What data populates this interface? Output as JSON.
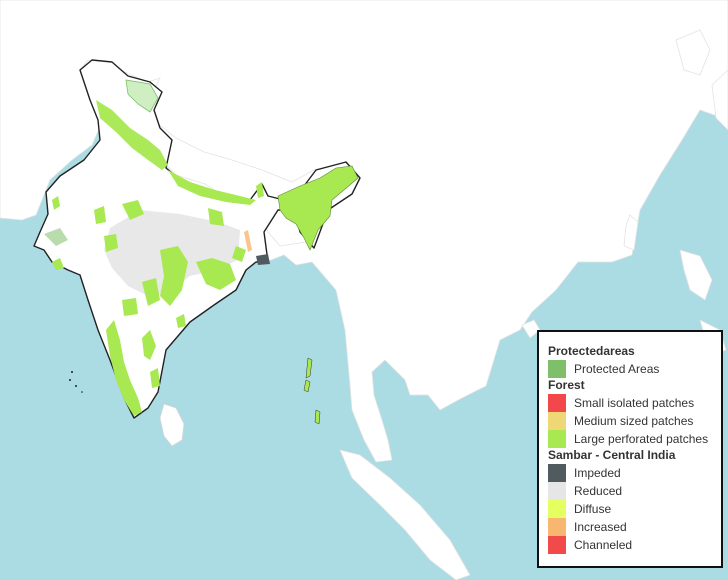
{
  "map": {
    "colors": {
      "sea": "#abdbe3",
      "land": "#ffffff",
      "india_fill": "#ffffff",
      "border": "#222222"
    }
  },
  "legend": {
    "groups": [
      {
        "title": "Protectedareas",
        "items": [
          {
            "label": "Protected Areas",
            "color": "#7fbf6a"
          }
        ]
      },
      {
        "title": "Forest",
        "items": [
          {
            "label": "Small isolated patches",
            "color": "#f2484b"
          },
          {
            "label": "Medium sized patches",
            "color": "#f0d775"
          },
          {
            "label": "Large perforated patches",
            "color": "#a8e850"
          }
        ]
      },
      {
        "title": "Sambar - Central India",
        "items": [
          {
            "label": "Impeded",
            "color": "#4f5b5e"
          },
          {
            "label": "Reduced",
            "color": "#e6e6e6"
          },
          {
            "label": "Diffuse",
            "color": "#e4ff5f"
          },
          {
            "label": "Increased",
            "color": "#f8b770"
          },
          {
            "label": "Channeled",
            "color": "#f04a4a"
          }
        ]
      }
    ]
  }
}
